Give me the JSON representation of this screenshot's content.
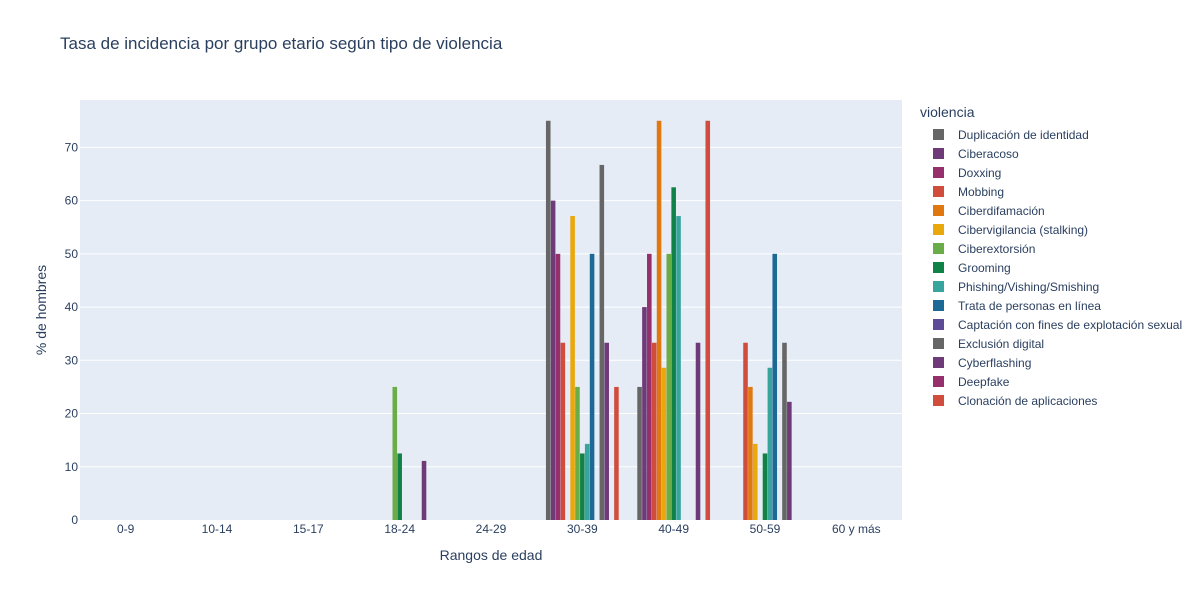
{
  "chart_data": {
    "type": "bar",
    "title": "Tasa de incidencia por grupo etario según tipo de violencia",
    "xlabel": "Rangos de edad",
    "ylabel": "% de hombres",
    "ylim": [
      0,
      78.9
    ],
    "yticks": [
      0,
      10,
      20,
      30,
      40,
      50,
      60,
      70
    ],
    "grid": true,
    "legend_title": "violencia",
    "legend_position": "right",
    "categories": [
      "0-9",
      "10-14",
      "15-17",
      "18-24",
      "24-29",
      "30-39",
      "40-49",
      "50-59",
      "60 y más"
    ],
    "series": [
      {
        "name": "Duplicación de identidad",
        "color": "#666666",
        "values": [
          0,
          0,
          0,
          0,
          0,
          75,
          25,
          0,
          0
        ]
      },
      {
        "name": "Ciberacoso",
        "color": "#6e3a78",
        "values": [
          0,
          0,
          0,
          0,
          0,
          60,
          40,
          0,
          0
        ]
      },
      {
        "name": "Doxxing",
        "color": "#95306c",
        "values": [
          0,
          0,
          0,
          0,
          0,
          50,
          50,
          0,
          0
        ]
      },
      {
        "name": "Mobbing",
        "color": "#d04d3e",
        "values": [
          0,
          0,
          0,
          0,
          0,
          33.3,
          33.3,
          33.3,
          0
        ]
      },
      {
        "name": "Ciberdifamación",
        "color": "#e1780f",
        "values": [
          0,
          0,
          0,
          0,
          0,
          0,
          75,
          25,
          0
        ]
      },
      {
        "name": "Cibervigilancia (stalking)",
        "color": "#e9a80c",
        "values": [
          0,
          0,
          0,
          0,
          0,
          57.1,
          28.6,
          14.3,
          0
        ]
      },
      {
        "name": "Ciberextorsión",
        "color": "#6aac48",
        "values": [
          0,
          0,
          0,
          25,
          0,
          25,
          50,
          0,
          0
        ]
      },
      {
        "name": "Grooming",
        "color": "#118247",
        "values": [
          0,
          0,
          0,
          12.5,
          0,
          12.5,
          62.5,
          12.5,
          0
        ]
      },
      {
        "name": "Phishing/Vishing/Smishing",
        "color": "#37a59e",
        "values": [
          0,
          0,
          0,
          0,
          0,
          14.3,
          57.1,
          28.6,
          0
        ]
      },
      {
        "name": "Trata de personas en línea",
        "color": "#1d6996",
        "values": [
          0,
          0,
          0,
          0,
          0,
          50,
          0,
          50,
          0
        ]
      },
      {
        "name": "Captación con fines de explotación sexual",
        "color": "#5d4b98",
        "values": [
          0,
          0,
          0,
          0,
          0,
          0,
          0,
          0,
          0
        ]
      },
      {
        "name": "Exclusión digital",
        "color": "#666666",
        "values": [
          0,
          0,
          0,
          0,
          0,
          66.7,
          0,
          33.3,
          0
        ]
      },
      {
        "name": "Cyberflashing",
        "color": "#6e3a78",
        "values": [
          0,
          0,
          0,
          11.1,
          0,
          33.3,
          33.3,
          22.2,
          0
        ]
      },
      {
        "name": "Deepfake",
        "color": "#95306c",
        "values": [
          0,
          0,
          0,
          0,
          0,
          0,
          0,
          0,
          0
        ]
      },
      {
        "name": "Clonación de aplicaciones",
        "color": "#d04d3e",
        "values": [
          0,
          0,
          0,
          0,
          0,
          25,
          75,
          0,
          0
        ]
      }
    ]
  }
}
